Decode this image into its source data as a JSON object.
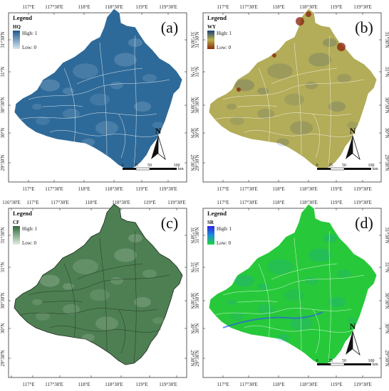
{
  "panels": [
    {
      "id": "a",
      "panel_label": "(a)",
      "legend_title": "Legend",
      "legend_var": "HQ",
      "legend_high": "High: 1",
      "legend_low": "Low: 0",
      "ramp": [
        "#d8e6f2",
        "#1f5a8e"
      ],
      "fill": "#2e6a99",
      "border": "#ffffff",
      "top_labels": [
        "117°E",
        "117°30'E",
        "118°E",
        "118°30'E",
        "119°E",
        "119°30'E"
      ],
      "bottom_labels": [
        "117°E",
        "117°30'E",
        "118°E",
        "118°30'E",
        "119°E",
        "119°30'E"
      ],
      "left_labels": [
        "31°30'N",
        "31°N",
        "30°30'N",
        "30°N",
        "29°30'N"
      ],
      "right_labels": [
        "31°30'N",
        "31°N",
        "30°30'N",
        "30°N",
        "29°30'N"
      ],
      "north": "N",
      "scale_ticks": [
        "0",
        "25",
        "50",
        "100"
      ],
      "scale_unit": "km"
    },
    {
      "id": "b",
      "panel_label": "(b)",
      "legend_title": "Legend",
      "legend_var": "WY",
      "legend_high": "High: 1",
      "legend_low": "Low: 0",
      "ramp": [
        "#8b2a10",
        "#b7b04a",
        "#1e3f7a"
      ],
      "fill": "#b3ac58",
      "border": "#ffffff",
      "top_labels": [
        "117°E",
        "117°30'E",
        "118°E",
        "118°30'E",
        "119°E",
        "119°30'E"
      ],
      "bottom_labels": [
        "117°E",
        "117°30'E",
        "118°E",
        "118°30'E",
        "119°E",
        "119°30'E"
      ],
      "left_labels": [
        "31°30'N",
        "31°N",
        "30°30'N",
        "30°N",
        "29°30'N"
      ],
      "right_labels": [
        "31°30'N",
        "31°N",
        "30°30'N",
        "30°N",
        "29°30'N"
      ],
      "north": "N",
      "scale_ticks": [
        "0",
        "25",
        "50",
        "100"
      ],
      "scale_unit": "km"
    },
    {
      "id": "c",
      "panel_label": "(c)",
      "legend_title": "Legend",
      "legend_var": "CF",
      "legend_high": "High: 1",
      "legend_low": "Low: 0",
      "ramp": [
        "#e3ece0",
        "#2f6a3a"
      ],
      "fill": "#4d7f52",
      "border": "#1e2a1e",
      "top_labels": [
        "116°30'E",
        "117°E",
        "117°30'E",
        "118°E",
        "118°30'E",
        "119°E",
        "119°30'E"
      ],
      "bottom_labels": [
        "117°E",
        "117°30'E",
        "118°E",
        "118°30'E",
        "119°E",
        "119°30'E"
      ],
      "left_labels": [
        "31°30'N",
        "31°N",
        "30°30'N",
        "30°N",
        "29°30'N"
      ],
      "right_labels": [
        "31°30'N",
        "31°N",
        "30°30'N",
        "30°N",
        "29°30'N"
      ],
      "north": "",
      "scale_ticks": [],
      "scale_unit": ""
    },
    {
      "id": "d",
      "panel_label": "(d)",
      "legend_title": "Legend",
      "legend_var": "SR",
      "legend_high": "High: 1",
      "legend_low": "Low: 0",
      "ramp": [
        "#1ed43a",
        "#1e8fd8",
        "#2b22e6"
      ],
      "fill": "#27c93a",
      "border": "#ffffff",
      "top_labels": [
        "117°E",
        "117°30'E",
        "118°E",
        "118°30'E",
        "119°E",
        "119°30'E"
      ],
      "bottom_labels": [
        "117°E",
        "117°30'E",
        "118°E",
        "118°30'E",
        "119°E",
        "119°30'E"
      ],
      "left_labels": [
        "31°30'N",
        "31°N",
        "30°30'N",
        "30°N",
        "29°30'N"
      ],
      "right_labels": [
        "31°30'N",
        "31°N",
        "30°30'N",
        "30°N",
        "29°30'N"
      ],
      "north": "N",
      "scale_ticks": [
        "0",
        "25",
        "50",
        "100"
      ],
      "scale_unit": "km"
    }
  ]
}
